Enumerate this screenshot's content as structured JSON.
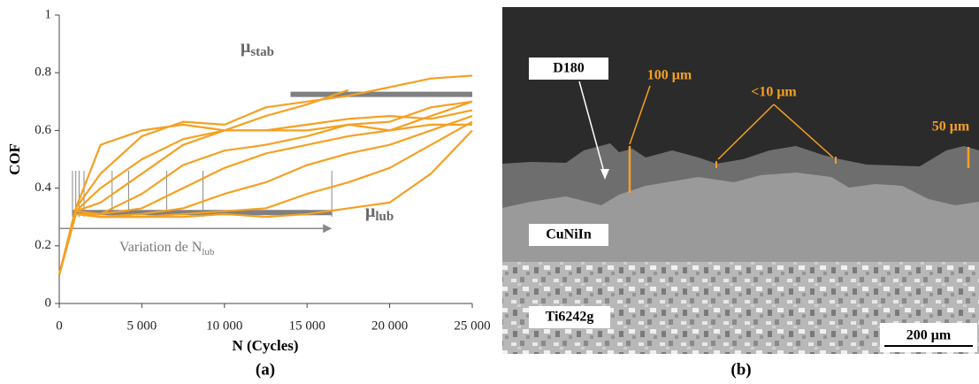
{
  "chart_data": {
    "type": "line",
    "x_label": "N (Cycles)",
    "y_label": "COF",
    "caption": "(a)",
    "color": "#f5a023",
    "x": [
      0,
      1000,
      2500,
      5000,
      7500,
      10000,
      12500,
      15000,
      17500,
      20000,
      22500,
      25000
    ],
    "series": [
      {
        "values": [
          0.1,
          0.33,
          0.55,
          0.6,
          0.62,
          0.6,
          0.6,
          0.62,
          0.64,
          0.65,
          0.64,
          0.67
        ]
      },
      {
        "values": [
          0.1,
          0.33,
          0.45,
          0.58,
          0.63,
          0.62,
          0.68,
          0.7,
          0.72,
          0.75,
          0.78,
          0.79
        ]
      },
      {
        "values": [
          0.1,
          0.32,
          0.4,
          0.5,
          0.57,
          0.6,
          0.6,
          0.6,
          0.62,
          0.63,
          0.68,
          0.7
        ]
      },
      {
        "values": [
          0.1,
          0.32,
          0.35,
          0.45,
          0.55,
          0.6,
          0.65,
          0.69,
          0.74,
          null,
          null,
          null
        ]
      },
      {
        "values": [
          0.1,
          0.32,
          0.31,
          0.38,
          0.48,
          0.53,
          0.55,
          0.58,
          0.62,
          0.6,
          0.65,
          0.7
        ]
      },
      {
        "values": [
          0.1,
          0.31,
          0.31,
          0.33,
          0.4,
          0.47,
          0.52,
          0.55,
          0.58,
          0.6,
          0.62,
          0.62
        ]
      },
      {
        "values": [
          0.1,
          0.31,
          0.3,
          0.31,
          0.33,
          0.38,
          0.42,
          0.48,
          0.52,
          0.55,
          0.6,
          0.65
        ]
      },
      {
        "values": [
          0.1,
          0.31,
          0.3,
          0.3,
          0.31,
          0.32,
          0.33,
          0.38,
          0.42,
          0.47,
          0.55,
          0.63
        ]
      },
      {
        "values": [
          0.1,
          0.31,
          0.3,
          0.3,
          0.3,
          0.31,
          0.3,
          0.31,
          0.33,
          0.35,
          0.45,
          0.6
        ]
      }
    ],
    "xlim": [
      0,
      25000
    ],
    "xticks": [
      0,
      {
        "value": 5000,
        "label": "5 000"
      },
      {
        "value": 10000,
        "label": "10 000"
      },
      {
        "value": 15000,
        "label": "15 000"
      },
      {
        "value": 20000,
        "label": "20 000"
      },
      {
        "value": 25000,
        "label": "25 000"
      }
    ],
    "ylim": [
      0,
      1
    ],
    "yticks": [
      0,
      0.2,
      0.4,
      0.6,
      0.8,
      1
    ],
    "reference_lines": [
      {
        "y": 0.725,
        "x": [
          14000,
          25000
        ]
      },
      {
        "y": 0.315,
        "x": [
          800,
          16500
        ]
      }
    ],
    "marker_x": [
      800,
      1000,
      1200,
      1500,
      3200,
      4200,
      6500,
      8700,
      16500
    ],
    "marker_y": [
      0.3,
      0.46
    ],
    "arrow": {
      "y": 0.26,
      "x": [
        0,
        16500
      ]
    },
    "annotations": [
      {
        "text": "μ",
        "sub": "stab"
      },
      {
        "text": "μ",
        "sub": "lub"
      },
      {
        "text": "Variation de N",
        "sub": "lub"
      }
    ]
  },
  "image": {
    "caption": "(b)",
    "labels": [
      "D180",
      "CuNiIn",
      "Ti6242g"
    ],
    "dimensions": [
      "100 μm",
      "<10 μm",
      "50 μm"
    ],
    "scale_bar": "200 μm"
  }
}
